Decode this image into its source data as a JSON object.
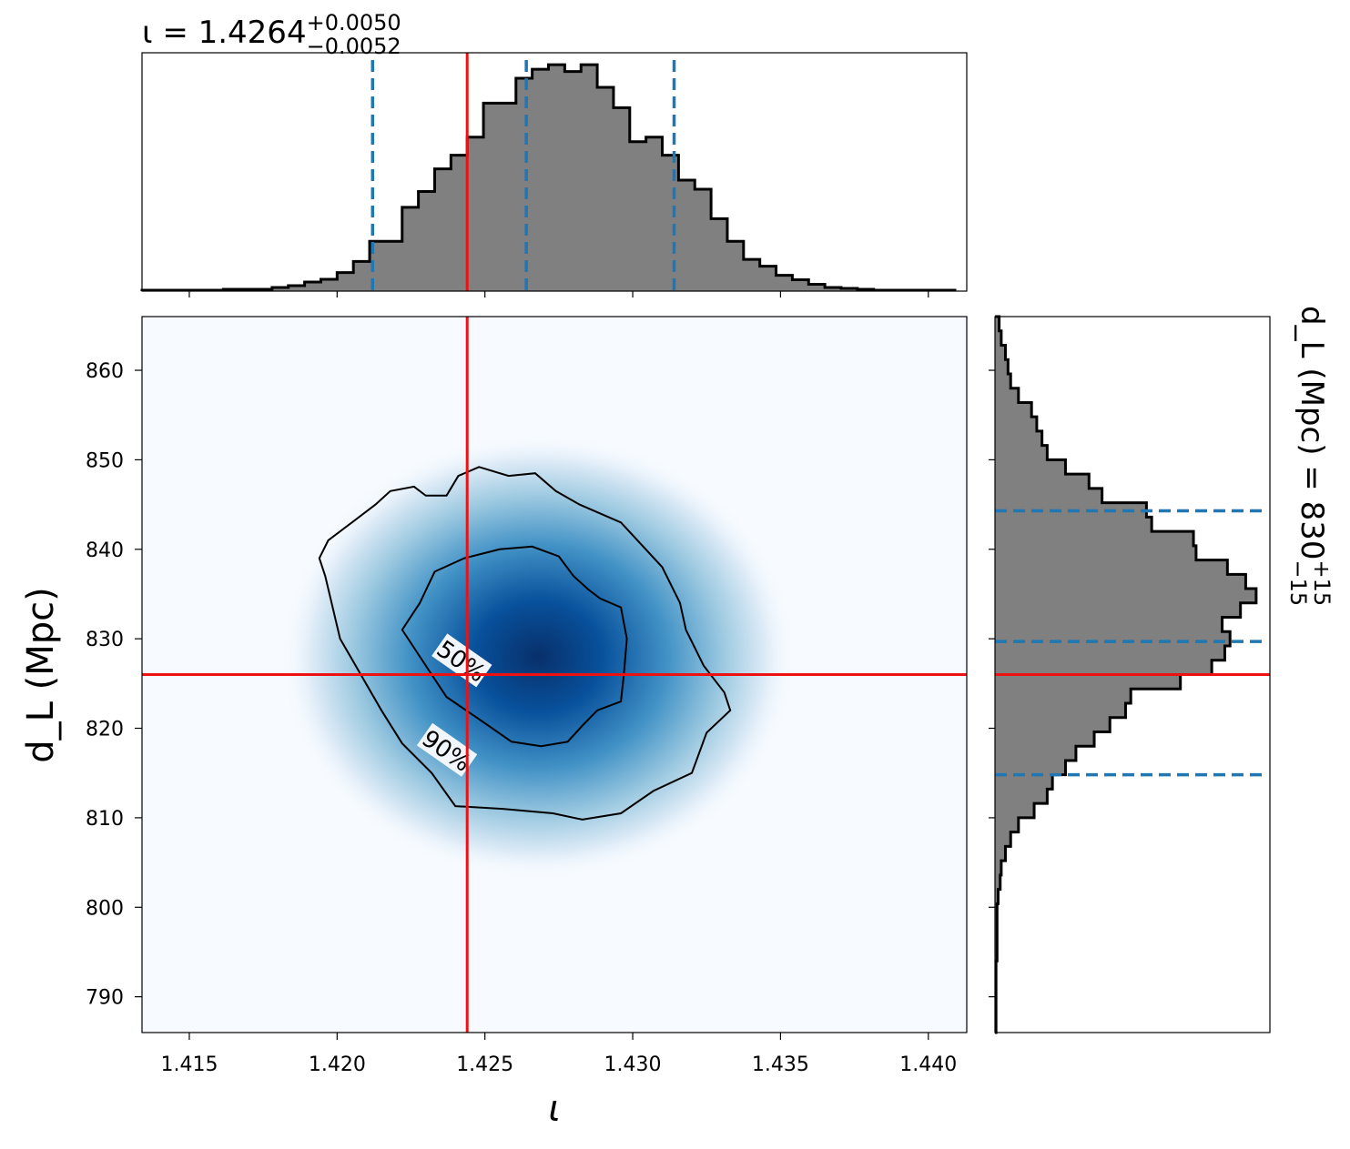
{
  "chart_data": {
    "type": "corner-plot",
    "parameters": [
      "ι",
      "d_L (Mpc)"
    ],
    "colors": {
      "histogram_fill": "#808080",
      "histogram_edge": "#000000",
      "quantile_lines": "#1f77b4",
      "truth_lines": "#ee1111",
      "density_cmap": [
        "#f7fbff",
        "#deebf7",
        "#9ecae1",
        "#4292c6",
        "#08519c",
        "#08306b"
      ],
      "contour_lines": "#000000"
    },
    "top_marginal": {
      "title": {
        "prefix": "ι = 1.4264",
        "sup": "+0.0050",
        "sub": "−0.0052"
      },
      "bin_edges_start": 1.4134,
      "bin_width": 0.00055,
      "counts": [
        0.004,
        0.004,
        0.004,
        0.004,
        0.004,
        0.008,
        0.008,
        0.008,
        0.016,
        0.024,
        0.04,
        0.052,
        0.082,
        0.131,
        0.22,
        0.22,
        0.37,
        0.44,
        0.54,
        0.6,
        0.68,
        0.83,
        0.83,
        0.94,
        0.98,
        1.0,
        0.97,
        1.0,
        0.9,
        0.81,
        0.66,
        0.68,
        0.6,
        0.49,
        0.45,
        0.32,
        0.22,
        0.14,
        0.11,
        0.07,
        0.05,
        0.03,
        0.016,
        0.012,
        0.008,
        0.004,
        0.004,
        0.004,
        0.004,
        0.004
      ],
      "quantiles": [
        1.4212,
        1.4264,
        1.4314
      ],
      "truth": 1.4244,
      "xlim": [
        1.4134,
        1.4413
      ]
    },
    "joint": {
      "xlabel": "ι",
      "ylabel": "d_L (Mpc)",
      "xlim": [
        1.4134,
        1.4413
      ],
      "ylim": [
        786,
        866
      ],
      "x_ticks": [
        "1.415",
        "1.420",
        "1.425",
        "1.430",
        "1.435",
        "1.440"
      ],
      "x_tick_values": [
        1.415,
        1.42,
        1.425,
        1.43,
        1.435,
        1.44
      ],
      "y_ticks": [
        "790",
        "800",
        "810",
        "820",
        "830",
        "840",
        "850",
        "860"
      ],
      "y_tick_values": [
        790,
        800,
        810,
        820,
        830,
        840,
        850,
        860
      ],
      "density_peak": {
        "x": 1.4268,
        "y": 828
      },
      "truth": {
        "x": 1.4244,
        "y": 826
      },
      "contours": [
        {
          "label": "50%",
          "label_at": {
            "x": 1.4242,
            "y": 827.5
          },
          "points": [
            [
              1.4222,
              831
            ],
            [
              1.4228,
              834
            ],
            [
              1.4233,
              837.5
            ],
            [
              1.4243,
              839
            ],
            [
              1.4255,
              840
            ],
            [
              1.4266,
              840.3
            ],
            [
              1.4275,
              839.2
            ],
            [
              1.428,
              837
            ],
            [
              1.4285,
              835.5
            ],
            [
              1.4289,
              834.5
            ],
            [
              1.4296,
              833.5
            ],
            [
              1.4298,
              830
            ],
            [
              1.4297,
              826
            ],
            [
              1.4296,
              823
            ],
            [
              1.4288,
              822
            ],
            [
              1.4283,
              820.3
            ],
            [
              1.4278,
              818.5
            ],
            [
              1.4269,
              818
            ],
            [
              1.4259,
              818.5
            ],
            [
              1.4249,
              820.8
            ],
            [
              1.4237,
              823.5
            ],
            [
              1.4232,
              826
            ],
            [
              1.4226,
              829
            ]
          ]
        },
        {
          "label": "90%",
          "label_at": {
            "x": 1.4237,
            "y": 817.5
          },
          "points": [
            [
              1.4237,
              846
            ],
            [
              1.4241,
              848.2
            ],
            [
              1.4248,
              849.2
            ],
            [
              1.4258,
              848.2
            ],
            [
              1.4267,
              848.5
            ],
            [
              1.4274,
              846.5
            ],
            [
              1.4282,
              845
            ],
            [
              1.4296,
              843
            ],
            [
              1.431,
              838
            ],
            [
              1.4316,
              834
            ],
            [
              1.4318,
              831
            ],
            [
              1.4324,
              827
            ],
            [
              1.4331,
              824
            ],
            [
              1.4333,
              822
            ],
            [
              1.4325,
              819.5
            ],
            [
              1.432,
              815
            ],
            [
              1.4307,
              813
            ],
            [
              1.4296,
              810.5
            ],
            [
              1.4283,
              809.8
            ],
            [
              1.4273,
              810.5
            ],
            [
              1.4256,
              811
            ],
            [
              1.424,
              811.3
            ],
            [
              1.4232,
              815
            ],
            [
              1.4222,
              818.3
            ],
            [
              1.4215,
              822
            ],
            [
              1.4201,
              830
            ],
            [
              1.4196,
              837
            ],
            [
              1.4194,
              839
            ],
            [
              1.4197,
              841
            ],
            [
              1.4205,
              843
            ],
            [
              1.4213,
              845
            ],
            [
              1.4218,
              846.5
            ],
            [
              1.4226,
              847
            ],
            [
              1.423,
              846
            ]
          ]
        }
      ]
    },
    "right_marginal": {
      "title": {
        "prefix": "d_L (Mpc) = 830",
        "sup": "+15",
        "sub": "−15"
      },
      "bin_edges_start": 786,
      "bin_width": 1.6,
      "counts": [
        0.004,
        0.004,
        0.004,
        0.004,
        0.004,
        0.008,
        0.008,
        0.008,
        0.008,
        0.012,
        0.02,
        0.024,
        0.04,
        0.06,
        0.09,
        0.15,
        0.2,
        0.22,
        0.27,
        0.31,
        0.38,
        0.44,
        0.5,
        0.52,
        0.71,
        0.83,
        0.88,
        0.9,
        0.87,
        0.94,
        1.0,
        0.96,
        0.89,
        0.77,
        0.76,
        0.6,
        0.58,
        0.41,
        0.36,
        0.27,
        0.2,
        0.18,
        0.16,
        0.14,
        0.09,
        0.06,
        0.05,
        0.04,
        0.024,
        0.016
      ],
      "quantiles": [
        814.8,
        829.7,
        844.3
      ],
      "truth": 826,
      "ylim": [
        786,
        866
      ]
    }
  }
}
